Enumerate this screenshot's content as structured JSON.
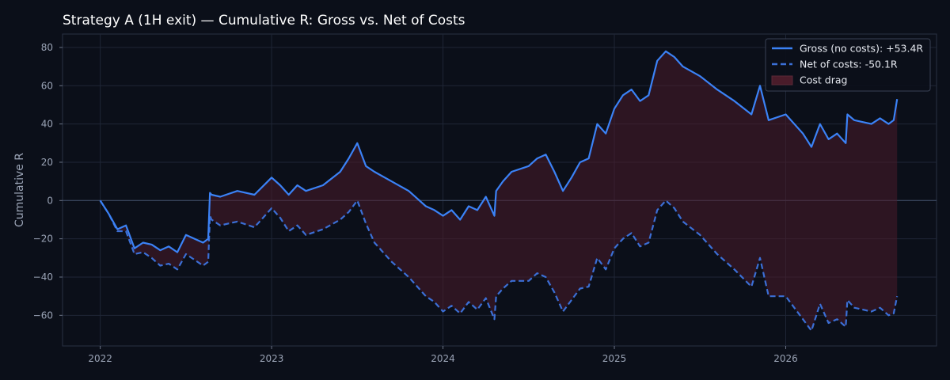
{
  "chart_data": {
    "type": "line",
    "title": "Strategy A (1H exit) — Cumulative R: Gross vs. Net of Costs",
    "xlabel": "",
    "ylabel": "Cumulative R",
    "xlim": [
      2021.78,
      2026.88
    ],
    "ylim": [
      -76,
      87
    ],
    "xticks": [
      2022,
      2023,
      2024,
      2025,
      2026
    ],
    "xtick_labels": [
      "2022",
      "2023",
      "2024",
      "2025",
      "2026"
    ],
    "yticks": [
      -60,
      -40,
      -20,
      0,
      20,
      40,
      60,
      80
    ],
    "ytick_labels": [
      "−60",
      "−40",
      "−20",
      "0",
      "20",
      "40",
      "60",
      "80"
    ],
    "grid": true,
    "zero_line": true,
    "legend_position": "top-right",
    "colors": {
      "gross": "#3b82f6",
      "net": "#3b6fd6",
      "cost_drag": "#4a1c2a",
      "background": "#0b0f19"
    },
    "series": [
      {
        "name": "Gross (no costs): +53.4R",
        "style": "solid",
        "x": [
          2022.0,
          2022.05,
          2022.1,
          2022.15,
          2022.2,
          2022.25,
          2022.3,
          2022.35,
          2022.4,
          2022.45,
          2022.5,
          2022.55,
          2022.6,
          2022.63,
          2022.64,
          2022.65,
          2022.7,
          2022.8,
          2022.9,
          2023.0,
          2023.05,
          2023.1,
          2023.15,
          2023.2,
          2023.3,
          2023.4,
          2023.45,
          2023.5,
          2023.55,
          2023.6,
          2023.7,
          2023.8,
          2023.9,
          2023.95,
          2024.0,
          2024.05,
          2024.1,
          2024.15,
          2024.2,
          2024.25,
          2024.3,
          2024.31,
          2024.35,
          2024.4,
          2024.5,
          2024.55,
          2024.6,
          2024.65,
          2024.7,
          2024.75,
          2024.8,
          2024.85,
          2024.9,
          2024.95,
          2025.0,
          2025.05,
          2025.1,
          2025.15,
          2025.2,
          2025.25,
          2025.3,
          2025.35,
          2025.4,
          2025.5,
          2025.6,
          2025.7,
          2025.8,
          2025.85,
          2025.9,
          2026.0,
          2026.1,
          2026.15,
          2026.2,
          2026.25,
          2026.3,
          2026.35,
          2026.36,
          2026.4,
          2026.5,
          2026.55,
          2026.6,
          2026.63,
          2026.65
        ],
        "values": [
          0,
          -7,
          -15,
          -13,
          -25,
          -22,
          -23,
          -26,
          -24,
          -27,
          -18,
          -20,
          -22,
          -20,
          4,
          3,
          2,
          5,
          3,
          12,
          8,
          3,
          8,
          5,
          8,
          15,
          22,
          30,
          18,
          15,
          10,
          5,
          -3,
          -5,
          -8,
          -5,
          -10,
          -3,
          -5,
          2,
          -8,
          5,
          10,
          15,
          18,
          22,
          24,
          15,
          5,
          12,
          20,
          22,
          40,
          35,
          48,
          55,
          58,
          52,
          55,
          73,
          78,
          75,
          70,
          65,
          58,
          52,
          45,
          60,
          42,
          45,
          35,
          28,
          40,
          32,
          35,
          30,
          45,
          42,
          40,
          43,
          40,
          42,
          53
        ]
      },
      {
        "name": "Net of costs: -50.1R",
        "style": "dashed",
        "x": [
          2022.0,
          2022.05,
          2022.1,
          2022.15,
          2022.2,
          2022.25,
          2022.3,
          2022.35,
          2022.4,
          2022.45,
          2022.5,
          2022.55,
          2022.6,
          2022.63,
          2022.64,
          2022.65,
          2022.7,
          2022.8,
          2022.9,
          2023.0,
          2023.05,
          2023.1,
          2023.15,
          2023.2,
          2023.3,
          2023.4,
          2023.45,
          2023.5,
          2023.55,
          2023.6,
          2023.7,
          2023.8,
          2023.9,
          2023.95,
          2024.0,
          2024.05,
          2024.1,
          2024.15,
          2024.2,
          2024.25,
          2024.3,
          2024.31,
          2024.35,
          2024.4,
          2024.5,
          2024.55,
          2024.6,
          2024.65,
          2024.7,
          2024.75,
          2024.8,
          2024.85,
          2024.9,
          2024.95,
          2025.0,
          2025.05,
          2025.1,
          2025.15,
          2025.2,
          2025.25,
          2025.3,
          2025.35,
          2025.4,
          2025.5,
          2025.6,
          2025.7,
          2025.8,
          2025.85,
          2025.9,
          2026.0,
          2026.1,
          2026.15,
          2026.2,
          2026.25,
          2026.3,
          2026.35,
          2026.36,
          2026.4,
          2026.5,
          2026.55,
          2026.6,
          2026.63,
          2026.65
        ],
        "values": [
          0,
          -7,
          -16,
          -16,
          -28,
          -27,
          -30,
          -34,
          -33,
          -36,
          -28,
          -31,
          -34,
          -32,
          -8,
          -10,
          -13,
          -11,
          -14,
          -4,
          -9,
          -16,
          -13,
          -18,
          -15,
          -10,
          -6,
          0,
          -12,
          -22,
          -32,
          -40,
          -50,
          -53,
          -58,
          -55,
          -59,
          -53,
          -57,
          -51,
          -62,
          -50,
          -46,
          -42,
          -42,
          -38,
          -40,
          -48,
          -58,
          -52,
          -46,
          -45,
          -30,
          -36,
          -25,
          -20,
          -17,
          -24,
          -22,
          -5,
          0,
          -4,
          -11,
          -18,
          -28,
          -36,
          -45,
          -30,
          -50,
          -50,
          -62,
          -68,
          -54,
          -64,
          -62,
          -66,
          -52,
          -56,
          -58,
          -56,
          -60,
          -59,
          -50
        ]
      }
    ],
    "fill": {
      "name": "Cost drag",
      "between": [
        "Gross (no costs): +53.4R",
        "Net of costs: -50.1R"
      ]
    }
  }
}
